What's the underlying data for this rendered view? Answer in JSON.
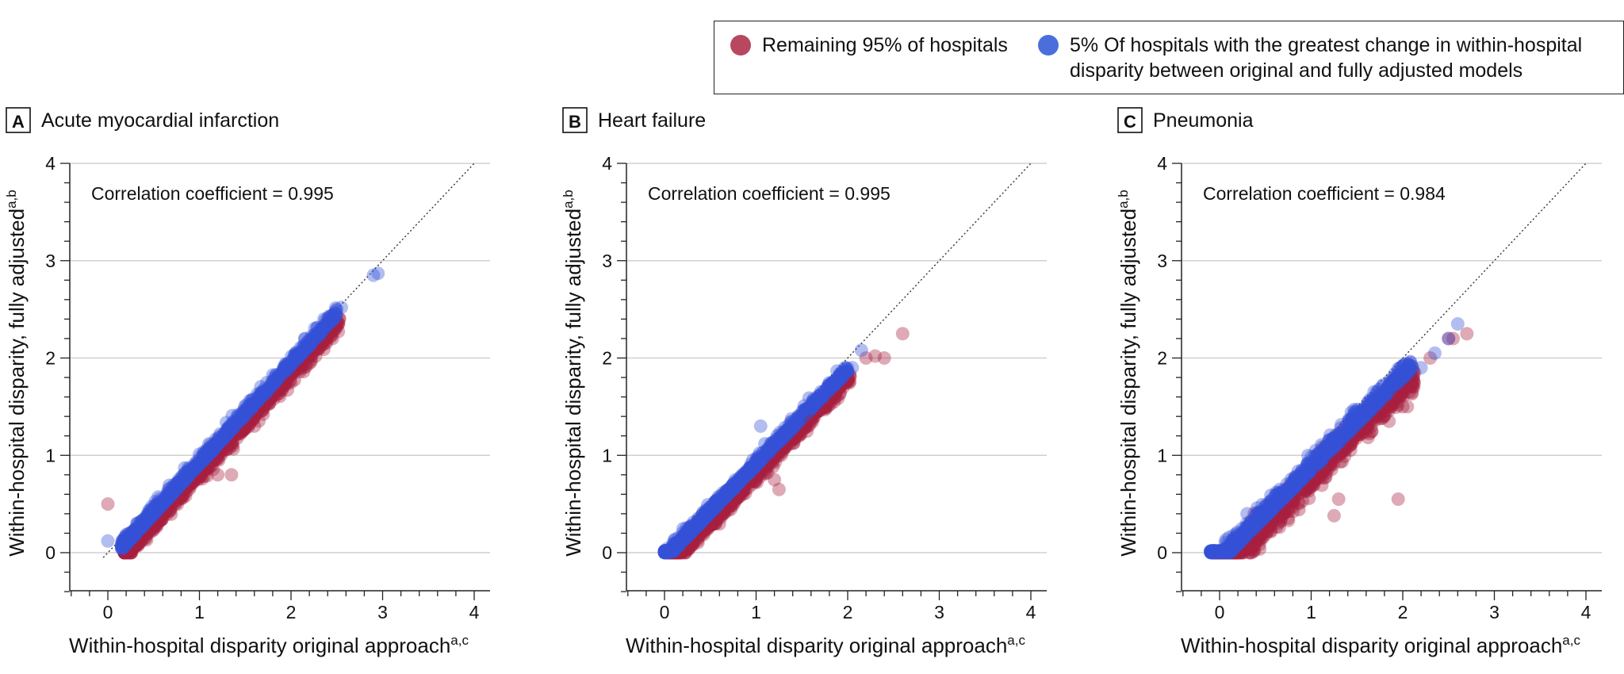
{
  "legend": {
    "items": [
      {
        "label": "Remaining 95% of hospitals",
        "color": "#b8485f"
      },
      {
        "label": "5% Of hospitals with the greatest change in within-hospital disparity between original and fully adjusted models",
        "color": "#4a6fdc"
      }
    ]
  },
  "colors": {
    "remaining": "#a8203e",
    "top5": "#3552d8",
    "grid": "#d0d0d0",
    "axis": "#222222"
  },
  "chart_data": [
    {
      "type": "scatter",
      "panel_letter": "A",
      "title": "Acute myocardial infarction",
      "annotation": "Correlation coefficient = 0.995",
      "xlabel": "Within-hospital disparity original approach",
      "xlabel_sup": "a,c",
      "ylabel": "Within-hospital disparity, fully adjusted",
      "ylabel_sup": "a,b",
      "xlim": [
        -0.4,
        4.0
      ],
      "ylim": [
        -0.4,
        4.0
      ],
      "xticks": [
        0,
        1,
        2,
        3,
        4
      ],
      "yticks": [
        0,
        1,
        2,
        3,
        4
      ],
      "reference_line": "y = x (dotted)",
      "trend": {
        "slope": 1.02,
        "intercept": -0.14,
        "x_range": [
          0.15,
          2.5
        ],
        "scatter": 0.045
      },
      "outliers": {
        "remaining": [
          [
            0.0,
            0.5
          ],
          [
            1.35,
            0.8
          ],
          [
            1.2,
            0.8
          ],
          [
            1.6,
            1.3
          ],
          [
            2.0,
            1.75
          ]
        ],
        "top5": [
          [
            0.0,
            0.12
          ],
          [
            2.9,
            2.85
          ],
          [
            2.95,
            2.87
          ],
          [
            2.5,
            2.5
          ],
          [
            2.55,
            2.52
          ],
          [
            2.4,
            2.35
          ],
          [
            2.15,
            2.2
          ]
        ]
      }
    },
    {
      "type": "scatter",
      "panel_letter": "B",
      "title": "Heart failure",
      "annotation": "Correlation coefficient = 0.995",
      "xlabel": "Within-hospital disparity original approach",
      "xlabel_sup": "a,c",
      "ylabel": "Within-hospital disparity, fully adjusted",
      "ylabel_sup": "a,b",
      "xlim": [
        -0.4,
        4.0
      ],
      "ylim": [
        -0.4,
        4.0
      ],
      "xticks": [
        0,
        1,
        2,
        3,
        4
      ],
      "yticks": [
        0,
        1,
        2,
        3,
        4
      ],
      "reference_line": "y = x (dotted)",
      "trend": {
        "slope": 0.97,
        "intercept": -0.1,
        "x_range": [
          0.0,
          2.0
        ],
        "scatter": 0.04
      },
      "outliers": {
        "remaining": [
          [
            2.6,
            2.25
          ],
          [
            2.4,
            2.0
          ],
          [
            2.2,
            2.0
          ],
          [
            2.3,
            2.02
          ],
          [
            1.25,
            0.65
          ],
          [
            1.2,
            0.75
          ],
          [
            1.6,
            1.35
          ],
          [
            1.85,
            1.55
          ]
        ],
        "top5": [
          [
            0.0,
            0.0
          ],
          [
            2.15,
            2.08
          ],
          [
            2.05,
            1.9
          ],
          [
            1.9,
            1.8
          ],
          [
            1.05,
            1.3
          ],
          [
            0.5,
            0.45
          ]
        ]
      }
    },
    {
      "type": "scatter",
      "panel_letter": "C",
      "title": "Pneumonia",
      "annotation": "Correlation coefficient = 0.984",
      "xlabel": "Within-hospital disparity original approach",
      "xlabel_sup": "a,c",
      "ylabel": "Within-hospital disparity, fully adjusted",
      "ylabel_sup": "a,b",
      "xlim": [
        -0.4,
        4.0
      ],
      "ylim": [
        -0.4,
        4.0
      ],
      "xticks": [
        0,
        1,
        2,
        3,
        4
      ],
      "yticks": [
        0,
        1,
        2,
        3,
        4
      ],
      "reference_line": "y = x (dotted)",
      "trend": {
        "slope": 0.95,
        "intercept": -0.13,
        "x_range": [
          -0.1,
          2.1
        ],
        "scatter": 0.07
      },
      "outliers": {
        "remaining": [
          [
            2.7,
            2.25
          ],
          [
            2.55,
            2.2
          ],
          [
            2.5,
            2.2
          ],
          [
            2.3,
            2.0
          ],
          [
            1.95,
            0.55
          ],
          [
            1.25,
            0.38
          ],
          [
            1.3,
            0.55
          ],
          [
            2.0,
            1.5
          ],
          [
            1.85,
            1.35
          ],
          [
            1.95,
            1.6
          ],
          [
            2.05,
            1.5
          ]
        ],
        "top5": [
          [
            2.6,
            2.35
          ],
          [
            2.5,
            2.2
          ],
          [
            2.35,
            2.05
          ],
          [
            2.2,
            1.9
          ],
          [
            0.3,
            0.4
          ],
          [
            1.05,
            1.05
          ],
          [
            1.5,
            1.45
          ]
        ]
      }
    }
  ]
}
